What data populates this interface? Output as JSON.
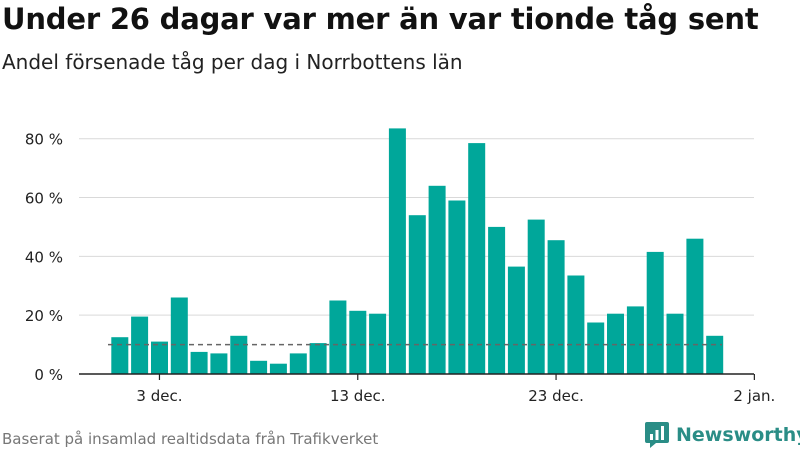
{
  "title": "Under 26 dagar var mer än var tionde tåg sent",
  "subtitle": "Andel försenade tåg per dag i Norrbottens län",
  "footer": "Baserat på insamlad realtidsdata från Trafikverket",
  "brand": {
    "name": "Newsworthy",
    "icon": "newsworthy-logo-icon",
    "color": "#2a8d86"
  },
  "colors": {
    "bar": "#00a79a",
    "grid": "#d9d9d9",
    "reference": "#666666",
    "axis": "#222222"
  },
  "chart_data": {
    "type": "bar",
    "title": "Under 26 dagar var mer än var tionde tåg sent",
    "subtitle": "Andel försenade tåg per dag i Norrbottens län",
    "xlabel": "",
    "ylabel": "",
    "categories": [
      "2018-12-01",
      "2018-12-02",
      "2018-12-03",
      "2018-12-04",
      "2018-12-05",
      "2018-12-06",
      "2018-12-07",
      "2018-12-08",
      "2018-12-09",
      "2018-12-10",
      "2018-12-11",
      "2018-12-12",
      "2018-12-13",
      "2018-12-14",
      "2018-12-15",
      "2018-12-16",
      "2018-12-17",
      "2018-12-18",
      "2018-12-19",
      "2018-12-20",
      "2018-12-21",
      "2018-12-22",
      "2018-12-23",
      "2018-12-24",
      "2018-12-25",
      "2018-12-26",
      "2018-12-27",
      "2018-12-28",
      "2018-12-29",
      "2018-12-30",
      "2018-12-31",
      "2019-01-01"
    ],
    "values": [
      12.5,
      19.5,
      11,
      26,
      7.5,
      7,
      13,
      4.5,
      3.5,
      7,
      10.5,
      25,
      21.5,
      20.5,
      83.5,
      54,
      64,
      59,
      78.5,
      50,
      36.5,
      52.5,
      45.5,
      33.5,
      17.5,
      20.5,
      23,
      41.5,
      20.5,
      46,
      13,
      null
    ],
    "reference_line": 10,
    "ylim": [
      0,
      85
    ],
    "yticks": [
      0,
      20,
      40,
      60,
      80
    ],
    "ytick_labels": [
      "0 %",
      "20 %",
      "40 %",
      "60 %",
      "80 %"
    ],
    "xticks": [
      "2018-12-03",
      "2018-12-13",
      "2018-12-23",
      "2019-01-02"
    ],
    "xtick_labels": [
      "3 dec.",
      "13 dec.",
      "23 dec.",
      "2 jan."
    ],
    "grid": true,
    "legend": "none"
  }
}
